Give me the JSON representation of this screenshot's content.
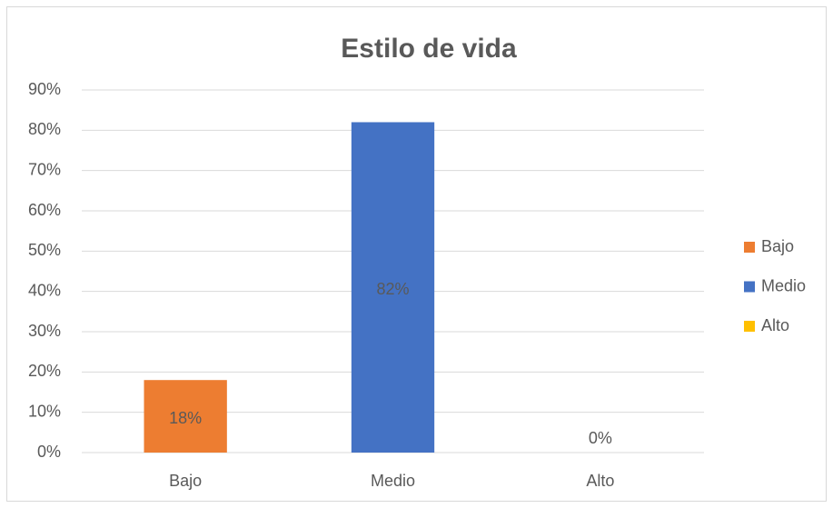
{
  "chart_data": {
    "type": "bar",
    "title": "Estilo de vida",
    "categories": [
      "Bajo",
      "Medio",
      "Alto"
    ],
    "values": [
      18,
      82,
      0
    ],
    "value_labels": [
      "18%",
      "82%",
      "0%"
    ],
    "colors": [
      "#ed7d31",
      "#4472c4",
      "#ffc000"
    ],
    "ylim": [
      0,
      90
    ],
    "yticks": [
      {
        "value": 0,
        "label": "0%"
      },
      {
        "value": 10,
        "label": "10%"
      },
      {
        "value": 20,
        "label": "20%"
      },
      {
        "value": 30,
        "label": "30%"
      },
      {
        "value": 40,
        "label": "40%"
      },
      {
        "value": 50,
        "label": "50%"
      },
      {
        "value": 60,
        "label": "60%"
      },
      {
        "value": 70,
        "label": "70%"
      },
      {
        "value": 80,
        "label": "80%"
      },
      {
        "value": 90,
        "label": "90%"
      }
    ],
    "grid": true,
    "legend": "right"
  }
}
